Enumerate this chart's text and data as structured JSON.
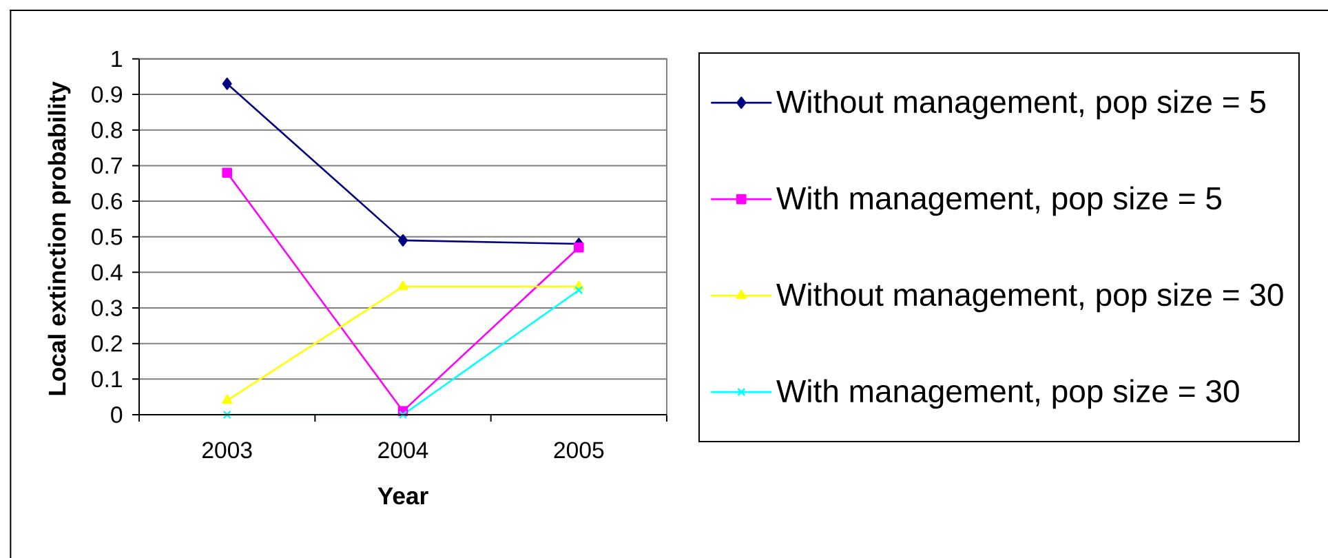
{
  "chart_data": {
    "type": "line",
    "xlabel": "Year",
    "ylabel": "Local extinction probability",
    "categories": [
      "2003",
      "2004",
      "2005"
    ],
    "series": [
      {
        "name": "Without management, pop size = 5",
        "color": "#000080",
        "marker": "diamond",
        "values": [
          0.93,
          0.49,
          0.48
        ]
      },
      {
        "name": "With management, pop size = 5",
        "color": "#ff00ff",
        "marker": "square",
        "values": [
          0.68,
          0.01,
          0.47
        ]
      },
      {
        "name": "Without management, pop size = 30",
        "color": "#ffff00",
        "marker": "triangle",
        "values": [
          0.04,
          0.36,
          0.36
        ]
      },
      {
        "name": "With management, pop size = 30",
        "color": "#00ffff",
        "marker": "cross",
        "values": [
          0,
          0,
          0.35
        ]
      }
    ],
    "ylim": [
      0,
      1
    ],
    "yticks": [
      0,
      0.1,
      0.2,
      0.3,
      0.4,
      0.5,
      0.6,
      0.7,
      0.8,
      0.9,
      1
    ],
    "grid": "y",
    "legend": "right",
    "line_style": "solid"
  }
}
